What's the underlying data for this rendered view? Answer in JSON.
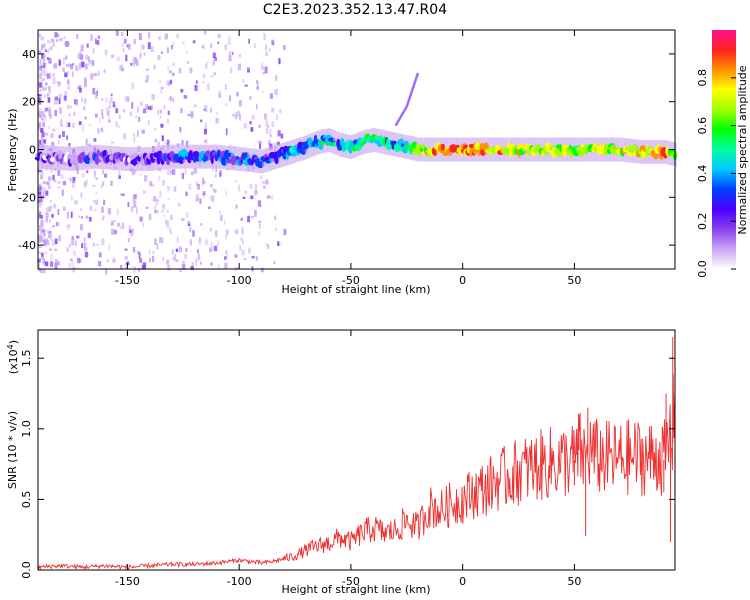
{
  "figure": {
    "title": "C2E3.2023.352.13.47.R04"
  },
  "chart_data": [
    {
      "type": "heatmap",
      "title": "C2E3.2023.352.13.47.R04",
      "xlabel": "Height of straight line (km)",
      "ylabel": "Frequency (Hz)",
      "xlim": [
        -190,
        95
      ],
      "ylim": [
        -50,
        50
      ],
      "x_ticks": [
        -150,
        -100,
        -50,
        0,
        50
      ],
      "y_ticks": [
        -40,
        -20,
        0,
        20,
        40
      ],
      "grid": false,
      "colorbar": {
        "label": "Normalized spectral amplitude",
        "range": [
          0.0,
          1.0
        ],
        "ticks": [
          0.0,
          0.2,
          0.4,
          0.6,
          0.8
        ],
        "tick_labels": [
          "0.0",
          "0.2",
          "0.4",
          "0.6",
          "0.8"
        ],
        "colormap": "rainbow",
        "colors": [
          "#ffffff",
          "#c9a6f2",
          "#8a3ff0",
          "#4a00ff",
          "#0040ff",
          "#00c8ff",
          "#00ffa0",
          "#00ff00",
          "#a0ff00",
          "#ffff00",
          "#ff9000",
          "#ff2020",
          "#ff1090"
        ]
      },
      "ridge": {
        "x": [
          -190,
          -175,
          -165,
          -150,
          -140,
          -130,
          -120,
          -110,
          -100,
          -90,
          -80,
          -70,
          -65,
          -60,
          -55,
          -50,
          -45,
          -40,
          -35,
          -30,
          -25,
          -20,
          -10,
          0,
          10,
          20,
          30,
          40,
          50,
          60,
          70,
          80,
          90,
          95
        ],
        "y": [
          -3,
          -4,
          -3,
          -4,
          -4,
          -3,
          -3,
          -3,
          -4,
          -5,
          -2,
          1,
          3,
          4,
          2,
          1,
          3,
          4,
          3,
          2,
          1,
          0,
          0,
          0,
          0,
          0,
          0,
          0,
          0,
          0,
          0,
          -1,
          -1,
          -2
        ],
        "amplitude": [
          0.15,
          0.15,
          0.2,
          0.15,
          0.15,
          0.25,
          0.3,
          0.3,
          0.3,
          0.3,
          0.35,
          0.4,
          0.45,
          0.45,
          0.4,
          0.45,
          0.5,
          0.5,
          0.45,
          0.4,
          0.5,
          0.7,
          0.8,
          0.85,
          0.8,
          0.75,
          0.7,
          0.65,
          0.65,
          0.65,
          0.7,
          0.75,
          0.8,
          0.6
        ]
      },
      "spur": {
        "x": [
          -30,
          -25,
          -20
        ],
        "y": [
          10,
          18,
          32
        ]
      }
    },
    {
      "type": "line",
      "xlabel": "Height of straight line (km)",
      "ylabel": "SNR (10 * v/v)",
      "scale_label": "(x10",
      "scale_exponent": "4",
      "scale_suffix": ")",
      "xlim": [
        -190,
        95
      ],
      "ylim": [
        0.0,
        1.7
      ],
      "x_ticks": [
        -150,
        -100,
        -50,
        0,
        50
      ],
      "y_ticks": [
        0.0,
        0.5,
        1.0,
        1.5
      ],
      "y_tick_labels": [
        "0.0",
        "0.5",
        "1.0",
        "1.5"
      ],
      "grid": false,
      "series": [
        {
          "color": "#ee3030",
          "x": [
            -190,
            -180,
            -170,
            -160,
            -150,
            -140,
            -130,
            -120,
            -110,
            -100,
            -95,
            -90,
            -85,
            -80,
            -75,
            -70,
            -65,
            -60,
            -55,
            -50,
            -45,
            -40,
            -35,
            -30,
            -25,
            -20,
            -15,
            -10,
            -5,
            0,
            5,
            10,
            15,
            20,
            25,
            30,
            35,
            40,
            45,
            50,
            52,
            55,
            57,
            60,
            65,
            70,
            75,
            80,
            85,
            88,
            90,
            92,
            93,
            94,
            95
          ],
          "y": [
            0.02,
            0.03,
            0.02,
            0.03,
            0.02,
            0.03,
            0.04,
            0.04,
            0.05,
            0.07,
            0.06,
            0.05,
            0.06,
            0.08,
            0.1,
            0.14,
            0.17,
            0.19,
            0.23,
            0.2,
            0.26,
            0.3,
            0.26,
            0.28,
            0.35,
            0.3,
            0.45,
            0.42,
            0.47,
            0.5,
            0.55,
            0.58,
            0.63,
            0.66,
            0.7,
            0.72,
            0.74,
            0.76,
            0.77,
            0.78,
            0.85,
            0.78,
            0.85,
            0.8,
            0.79,
            0.78,
            0.8,
            0.8,
            0.79,
            0.82,
            0.78,
            0.85,
            1.0,
            0.9,
            1.6
          ],
          "spikes": [
            {
              "x": 50,
              "y": 0.6
            },
            {
              "x": 51,
              "y": 1.0
            },
            {
              "x": 52,
              "y": 1.1
            },
            {
              "x": 55,
              "y": 0.24
            },
            {
              "x": 56,
              "y": 1.15
            },
            {
              "x": 58,
              "y": 0.88
            },
            {
              "x": 90,
              "y": 0.55
            },
            {
              "x": 91,
              "y": 1.25
            },
            {
              "x": 93,
              "y": 0.2
            },
            {
              "x": 94,
              "y": 1.65
            }
          ]
        }
      ]
    }
  ]
}
